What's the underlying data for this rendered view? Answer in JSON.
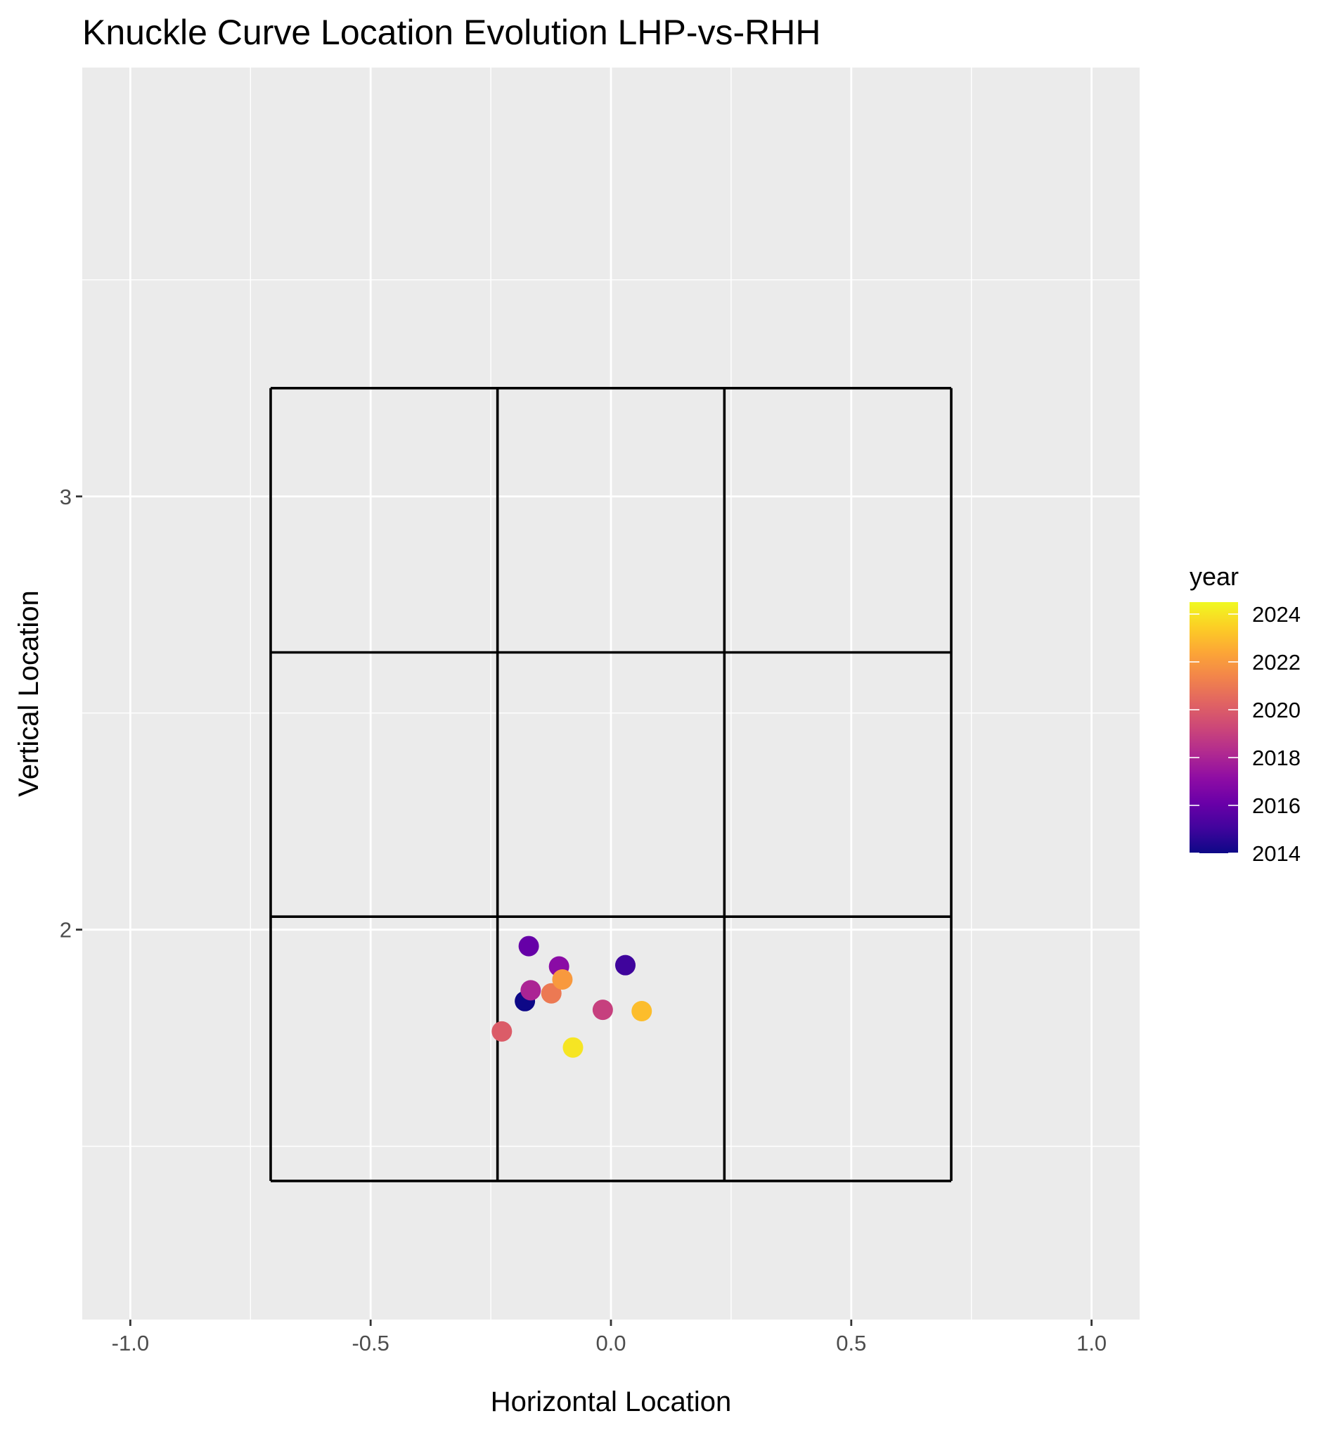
{
  "chart_data": {
    "type": "scatter",
    "title": "Knuckle Curve Location Evolution LHP-vs-RHH",
    "xlabel": "Horizontal Location",
    "ylabel": "Vertical Location",
    "xlim": [
      -1.1,
      1.1
    ],
    "ylim": [
      1.1,
      3.99
    ],
    "x_ticks": [
      -1.0,
      -0.5,
      0.0,
      0.5,
      1.0
    ],
    "x_tick_labels": [
      "-1.0",
      "-0.5",
      "0.0",
      "0.5",
      "1.0"
    ],
    "y_ticks": [
      2,
      3
    ],
    "y_tick_labels": [
      "2",
      "3"
    ],
    "grid": true,
    "background": "#ebebeb",
    "strike_zone": {
      "x_edges": [
        -0.708,
        -0.236,
        0.236,
        0.708
      ],
      "z_edges": [
        1.42,
        2.03,
        2.64,
        3.25
      ]
    },
    "points": [
      {
        "year": 2014,
        "x": -0.179,
        "y": 1.835
      },
      {
        "year": 2015,
        "x": 0.03,
        "y": 1.918
      },
      {
        "year": 2016,
        "x": -0.171,
        "y": 1.962
      },
      {
        "year": 2017,
        "x": -0.108,
        "y": 1.915
      },
      {
        "year": 2018,
        "x": -0.167,
        "y": 1.86
      },
      {
        "year": 2019,
        "x": -0.017,
        "y": 1.815
      },
      {
        "year": 2020,
        "x": -0.227,
        "y": 1.765
      },
      {
        "year": 2021,
        "x": -0.124,
        "y": 1.853
      },
      {
        "year": 2022,
        "x": -0.101,
        "y": 1.885
      },
      {
        "year": 2023,
        "x": 0.064,
        "y": 1.812
      },
      {
        "year": 2024,
        "x": -0.079,
        "y": 1.728
      }
    ],
    "legend": {
      "title": "year",
      "placement": "right",
      "min": 2014,
      "max": 2024.5,
      "ticks": [
        2014,
        2016,
        2018,
        2020,
        2022,
        2024
      ],
      "tick_labels": [
        "2014",
        "2016",
        "2018",
        "2020",
        "2022",
        "2024"
      ],
      "palette": [
        "#0d0887",
        "#41049d",
        "#6a00a8",
        "#8f0da4",
        "#b12a90",
        "#cc4778",
        "#e16462",
        "#f2844b",
        "#fca636",
        "#fcce25",
        "#f0f921"
      ]
    }
  }
}
